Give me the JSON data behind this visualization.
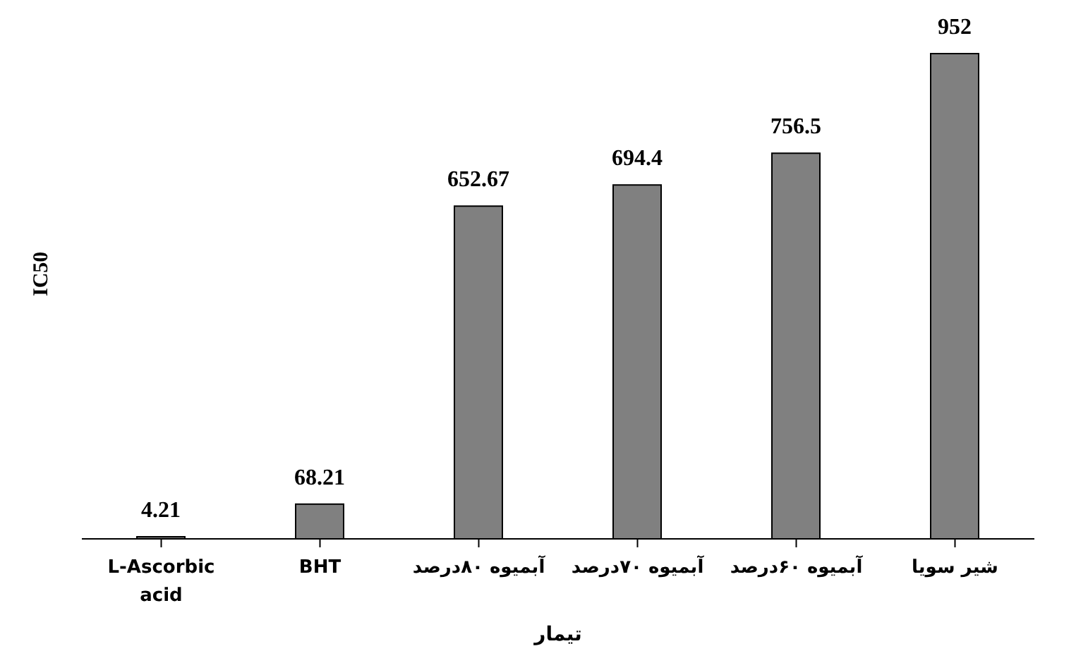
{
  "chart_data": {
    "type": "bar",
    "xlabel": "تیمار",
    "ylabel": "IC50",
    "categories": [
      "L-Ascorbic acid",
      "BHT",
      "آبمیوه ۸۰درصد",
      "آبمیوه ۷۰درصد",
      "آبمیوه ۶۰درصد",
      "شیر سویا"
    ],
    "values": [
      4.21,
      68.21,
      652.67,
      694.4,
      756.5,
      952
    ],
    "color": "#808080",
    "data_labels": true,
    "grid": false
  }
}
